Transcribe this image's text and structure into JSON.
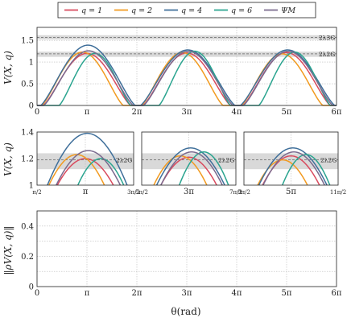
{
  "legend": [
    {
      "label": "q = 1",
      "color": "#d94a5e"
    },
    {
      "label": "q = 2",
      "color": "#f29a1f"
    },
    {
      "label": "q = 4",
      "color": "#3f6f9a"
    },
    {
      "label": "q = 6",
      "color": "#2aa48f"
    },
    {
      "label": "ΨM",
      "color": "#7a6a8e"
    }
  ],
  "chart_data": [
    {
      "type": "line",
      "ylabel": "V(X, q)",
      "xlabel": "",
      "xlim_pi": [
        0,
        6
      ],
      "ylim": [
        0,
        1.8
      ],
      "x_ticks": [
        "0",
        "π",
        "2π",
        "3π",
        "4π",
        "5π",
        "6π"
      ],
      "y_ticks": [
        "0",
        "0.5",
        "1",
        "1.5"
      ],
      "grid": true,
      "bands": [
        {
          "label": "2λ3G",
          "value": 1.57,
          "range": [
            1.52,
            1.62
          ]
        },
        {
          "label": "2λ2G",
          "value": 1.19,
          "range": [
            1.12,
            1.24
          ]
        }
      ],
      "series": [
        {
          "name": "q = 1",
          "color": "#d94a5e",
          "peaks": [
            1.2,
            1.21,
            1.22
          ]
        },
        {
          "name": "q = 2",
          "color": "#f29a1f",
          "peaks": [
            1.23,
            1.22,
            1.19
          ]
        },
        {
          "name": "q = 4",
          "color": "#3f6f9a",
          "peaks": [
            1.39,
            1.28,
            1.28
          ]
        },
        {
          "name": "q = 6",
          "color": "#2aa48f",
          "peaks": [
            1.2,
            1.25,
            1.23
          ]
        },
        {
          "name": "ΨM",
          "color": "#7a6a8e",
          "peaks": [
            1.26,
            1.25,
            1.25
          ]
        }
      ]
    },
    {
      "type": "line",
      "ylabel": "V(X, q)",
      "ylim": [
        1.0,
        1.4
      ],
      "y_ticks": [
        "1",
        "1.2",
        "1.4"
      ],
      "panels": [
        {
          "x_ticks": [
            "π/2",
            "π",
            "3π/2"
          ]
        },
        {
          "x_ticks": [
            "5π/2",
            "3π",
            "7π/2"
          ]
        },
        {
          "x_ticks": [
            "9π/2",
            "5π",
            "11π/2"
          ]
        }
      ],
      "band_label": "2λ2G"
    },
    {
      "type": "line",
      "ylabel": "‖ρV(X, q)‖",
      "xlabel": "θ(rad)",
      "xlim_pi": [
        0,
        6
      ],
      "ylim": [
        0,
        0.5
      ],
      "x_ticks": [
        "0",
        "π",
        "2π",
        "3π",
        "4π",
        "5π",
        "6π"
      ],
      "y_ticks": [
        "0",
        "0.2",
        "0.4"
      ],
      "grid": true
    }
  ]
}
